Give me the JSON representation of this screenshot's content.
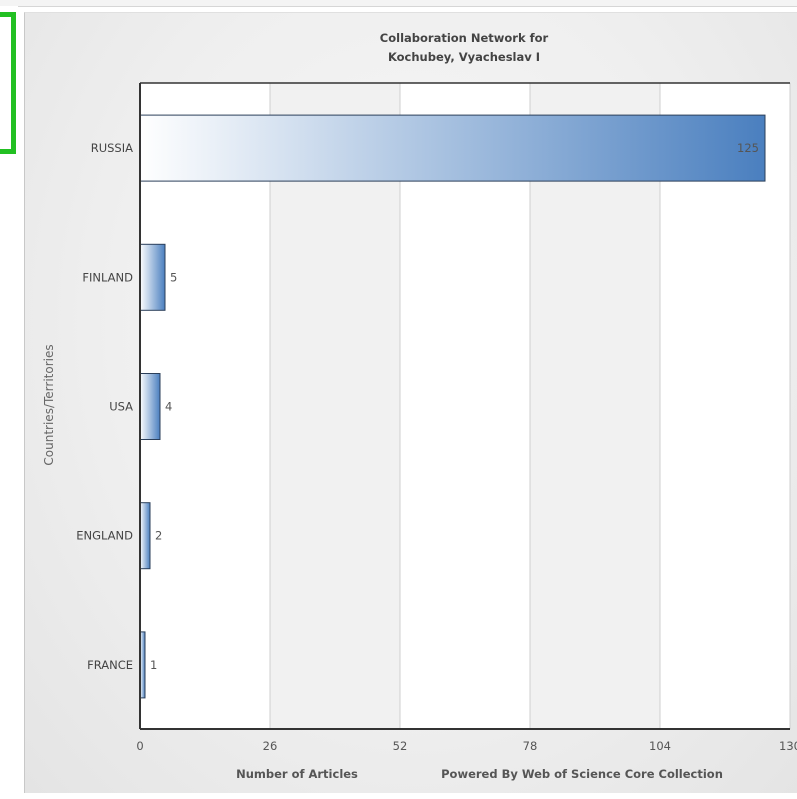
{
  "chart_data": {
    "type": "bar",
    "orientation": "horizontal",
    "title_lines": [
      "Collaboration Network for",
      "Kochubey, Vyacheslav I"
    ],
    "categories": [
      "RUSSIA",
      "FINLAND",
      "USA",
      "ENGLAND",
      "FRANCE"
    ],
    "values": [
      125,
      5,
      4,
      2,
      1
    ],
    "xlabel": "Number of Articles",
    "ylabel": "Countries/Territories",
    "xlim": [
      0,
      130
    ],
    "xticks": [
      "0",
      "26",
      "52",
      "78",
      "104",
      "130"
    ],
    "grid": true,
    "footer": "Powered By Web of Science Core Collection",
    "colors": {
      "bar_end": "#4a7fbf",
      "bar_start": "#ffffff",
      "bar_border": "#2b3f5a"
    }
  }
}
